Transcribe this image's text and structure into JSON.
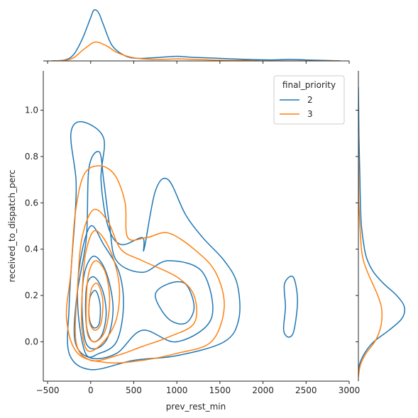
{
  "chart_data": {
    "type": "kde-jointplot",
    "xlabel": "prev_rest_min",
    "ylabel": "received_to_dispatch_perc",
    "xlim": [
      -550,
      3000
    ],
    "ylim": [
      -0.17,
      1.17
    ],
    "xticks": [
      -500,
      0,
      500,
      1000,
      1500,
      2000,
      2500,
      3000
    ],
    "yticks": [
      0.0,
      0.2,
      0.4,
      0.6,
      0.8,
      1.0
    ],
    "xtick_labels": [
      "−500",
      "0",
      "500",
      "1000",
      "1500",
      "2000",
      "2500",
      "3000"
    ],
    "ytick_labels": [
      "0.0",
      "0.2",
      "0.4",
      "0.6",
      "0.8",
      "1.0"
    ],
    "legend": {
      "title": "final_priority",
      "placement": "top-right",
      "entries": [
        {
          "label": "2",
          "color": "#1f77b4"
        },
        {
          "label": "3",
          "color": "#ff7f0e"
        }
      ]
    },
    "series": [
      {
        "name": "2",
        "color": "#1f77b4",
        "contours": [
          [
            [
              -250,
              0.15
            ],
            [
              -220,
              0.35
            ],
            [
              -180,
              0.55
            ],
            [
              -170,
              0.7
            ],
            [
              -230,
              0.9
            ],
            [
              -100,
              0.95
            ],
            [
              150,
              0.88
            ],
            [
              120,
              0.7
            ],
            [
              200,
              0.5
            ],
            [
              350,
              0.42
            ],
            [
              600,
              0.45
            ],
            [
              620,
              0.4
            ],
            [
              750,
              0.65
            ],
            [
              900,
              0.7
            ],
            [
              1100,
              0.55
            ],
            [
              1300,
              0.45
            ],
            [
              1550,
              0.35
            ],
            [
              1700,
              0.25
            ],
            [
              1720,
              0.1
            ],
            [
              1550,
              0.0
            ],
            [
              1000,
              -0.06
            ],
            [
              500,
              -0.08
            ],
            [
              0,
              -0.12
            ],
            [
              -250,
              -0.05
            ],
            [
              -250,
              0.15
            ]
          ],
          [
            [
              -50,
              0.45
            ],
            [
              -20,
              0.75
            ],
            [
              100,
              0.82
            ],
            [
              150,
              0.7
            ],
            [
              220,
              0.5
            ],
            [
              300,
              0.35
            ],
            [
              600,
              0.3
            ],
            [
              900,
              0.35
            ],
            [
              1300,
              0.3
            ],
            [
              1400,
              0.1
            ],
            [
              1000,
              0.0
            ],
            [
              600,
              0.05
            ],
            [
              300,
              -0.05
            ],
            [
              0,
              -0.07
            ],
            [
              -180,
              0.0
            ],
            [
              -160,
              0.2
            ],
            [
              -50,
              0.45
            ]
          ],
          [
            [
              750,
              0.2
            ],
            [
              900,
              0.25
            ],
            [
              1100,
              0.25
            ],
            [
              1200,
              0.15
            ],
            [
              1100,
              0.08
            ],
            [
              900,
              0.1
            ],
            [
              750,
              0.2
            ]
          ],
          [
            [
              2250,
              0.25
            ],
            [
              2350,
              0.28
            ],
            [
              2400,
              0.18
            ],
            [
              2360,
              0.05
            ],
            [
              2300,
              0.02
            ],
            [
              2240,
              0.05
            ],
            [
              2260,
              0.15
            ],
            [
              2250,
              0.25
            ]
          ],
          [
            [
              -150,
              0.15
            ],
            [
              -120,
              0.35
            ],
            [
              0,
              0.5
            ],
            [
              150,
              0.42
            ],
            [
              330,
              0.3
            ],
            [
              380,
              0.15
            ],
            [
              300,
              0.0
            ],
            [
              100,
              -0.05
            ],
            [
              -60,
              -0.05
            ],
            [
              -150,
              0.15
            ]
          ],
          [
            [
              -100,
              0.15
            ],
            [
              -70,
              0.3
            ],
            [
              40,
              0.37
            ],
            [
              180,
              0.3
            ],
            [
              260,
              0.15
            ],
            [
              200,
              0.02
            ],
            [
              60,
              -0.03
            ],
            [
              -60,
              0.0
            ],
            [
              -100,
              0.15
            ]
          ],
          [
            [
              -60,
              0.15
            ],
            [
              -40,
              0.25
            ],
            [
              40,
              0.28
            ],
            [
              140,
              0.22
            ],
            [
              180,
              0.12
            ],
            [
              130,
              0.03
            ],
            [
              30,
              0.0
            ],
            [
              -40,
              0.05
            ],
            [
              -60,
              0.15
            ]
          ],
          [
            [
              -20,
              0.15
            ],
            [
              0,
              0.2
            ],
            [
              60,
              0.22
            ],
            [
              110,
              0.16
            ],
            [
              100,
              0.08
            ],
            [
              40,
              0.06
            ],
            [
              -10,
              0.09
            ],
            [
              -20,
              0.15
            ]
          ]
        ]
      },
      {
        "name": "3",
        "color": "#ff7f0e",
        "contours": [
          [
            [
              -230,
              0.3
            ],
            [
              -180,
              0.55
            ],
            [
              -80,
              0.72
            ],
            [
              100,
              0.76
            ],
            [
              280,
              0.72
            ],
            [
              400,
              0.6
            ],
            [
              430,
              0.45
            ],
            [
              650,
              0.45
            ],
            [
              900,
              0.47
            ],
            [
              1200,
              0.4
            ],
            [
              1450,
              0.3
            ],
            [
              1550,
              0.15
            ],
            [
              1400,
              0.0
            ],
            [
              1000,
              -0.05
            ],
            [
              600,
              -0.08
            ],
            [
              200,
              -0.09
            ],
            [
              -150,
              -0.05
            ],
            [
              -280,
              0.1
            ],
            [
              -230,
              0.3
            ]
          ],
          [
            [
              -150,
              0.25
            ],
            [
              -100,
              0.45
            ],
            [
              30,
              0.57
            ],
            [
              200,
              0.52
            ],
            [
              350,
              0.4
            ],
            [
              600,
              0.35
            ],
            [
              1000,
              0.28
            ],
            [
              1200,
              0.2
            ],
            [
              1200,
              0.08
            ],
            [
              900,
              0.02
            ],
            [
              600,
              -0.02
            ],
            [
              300,
              -0.06
            ],
            [
              0,
              -0.08
            ],
            [
              -170,
              0.0
            ],
            [
              -150,
              0.25
            ]
          ],
          [
            [
              -100,
              0.2
            ],
            [
              -60,
              0.38
            ],
            [
              50,
              0.48
            ],
            [
              220,
              0.4
            ],
            [
              330,
              0.25
            ],
            [
              300,
              0.1
            ],
            [
              150,
              0.0
            ],
            [
              -30,
              -0.04
            ],
            [
              -100,
              0.05
            ],
            [
              -100,
              0.2
            ]
          ],
          [
            [
              -50,
              0.18
            ],
            [
              -20,
              0.3
            ],
            [
              60,
              0.35
            ],
            [
              170,
              0.3
            ],
            [
              220,
              0.18
            ],
            [
              170,
              0.05
            ],
            [
              50,
              0.0
            ],
            [
              -40,
              0.04
            ],
            [
              -50,
              0.18
            ]
          ],
          [
            [
              -20,
              0.15
            ],
            [
              10,
              0.23
            ],
            [
              80,
              0.25
            ],
            [
              140,
              0.18
            ],
            [
              120,
              0.08
            ],
            [
              50,
              0.05
            ],
            [
              -10,
              0.08
            ],
            [
              -20,
              0.15
            ]
          ]
        ]
      }
    ],
    "x_marginal": [
      {
        "name": "2",
        "color": "#1f77b4",
        "x": [
          -450,
          -300,
          -200,
          -100,
          0,
          30,
          60,
          100,
          150,
          250,
          400,
          550,
          700,
          800,
          1000,
          1200,
          1500,
          1800,
          2100,
          2300,
          2500,
          2700,
          2900
        ],
        "density": [
          0.0,
          0.02,
          0.12,
          0.42,
          0.85,
          0.98,
          1.0,
          0.92,
          0.7,
          0.3,
          0.1,
          0.05,
          0.06,
          0.07,
          0.09,
          0.07,
          0.05,
          0.03,
          0.02,
          0.03,
          0.02,
          0.01,
          0.0
        ]
      },
      {
        "name": "3",
        "color": "#ff7f0e",
        "x": [
          -450,
          -300,
          -200,
          -100,
          0,
          50,
          100,
          200,
          300,
          450,
          600,
          800,
          1000,
          1200,
          1400,
          1600,
          1800,
          2000,
          2300,
          2600,
          2900
        ],
        "density": [
          0.0,
          0.01,
          0.06,
          0.2,
          0.33,
          0.37,
          0.36,
          0.28,
          0.17,
          0.08,
          0.04,
          0.03,
          0.04,
          0.03,
          0.02,
          0.01,
          0.01,
          0.0,
          0.0,
          0.0,
          0.0
        ]
      }
    ],
    "y_marginal": [
      {
        "name": "2",
        "color": "#1f77b4",
        "y": [
          -0.15,
          -0.1,
          -0.05,
          0.0,
          0.05,
          0.1,
          0.15,
          0.2,
          0.25,
          0.3,
          0.35,
          0.4,
          0.5,
          0.6,
          0.7,
          0.8,
          0.9,
          1.0,
          1.1
        ],
        "density": [
          0.0,
          0.02,
          0.12,
          0.3,
          0.6,
          0.85,
          0.9,
          0.75,
          0.5,
          0.3,
          0.18,
          0.12,
          0.06,
          0.04,
          0.03,
          0.02,
          0.01,
          0.005,
          0.0
        ]
      },
      {
        "name": "3",
        "color": "#ff7f0e",
        "y": [
          -0.15,
          -0.1,
          -0.05,
          0.0,
          0.05,
          0.1,
          0.15,
          0.2,
          0.25,
          0.3,
          0.35,
          0.4,
          0.5,
          0.6,
          0.7,
          0.8,
          0.9
        ],
        "density": [
          0.0,
          0.04,
          0.15,
          0.32,
          0.42,
          0.46,
          0.45,
          0.38,
          0.28,
          0.18,
          0.1,
          0.06,
          0.03,
          0.01,
          0.005,
          0.0,
          0.0
        ]
      }
    ]
  }
}
